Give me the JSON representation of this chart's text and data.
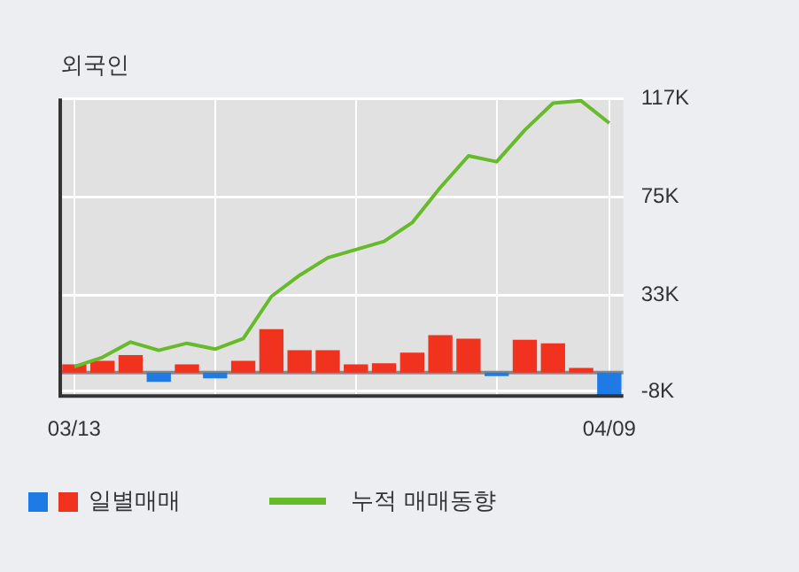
{
  "chart_data": {
    "type": "bar",
    "title": "외국인",
    "categories": [
      "03/13",
      null,
      null,
      null,
      null,
      null,
      null,
      null,
      null,
      null,
      null,
      null,
      null,
      null,
      null,
      null,
      null,
      null,
      null,
      "04/09"
    ],
    "series": [
      {
        "name": "일별매매",
        "colors": [
          "#f0321e",
          "#f0321e",
          "#f0321e",
          "#1e7be6",
          "#f0321e",
          "#1e7be6",
          "#f0321e",
          "#f0321e",
          "#f0321e",
          "#f0321e",
          "#f0321e",
          "#f0321e",
          "#f0321e",
          "#f0321e",
          "#f0321e",
          "#1e7be6",
          "#f0321e",
          "#f0321e",
          "#f0321e",
          "#1e7be6"
        ],
        "values": [
          3500,
          5000,
          7500,
          -4000,
          3500,
          -2500,
          5000,
          18500,
          9500,
          9500,
          3500,
          4000,
          8500,
          16000,
          14500,
          -1500,
          14000,
          12500,
          2000,
          -9500
        ]
      },
      {
        "name": "누적 매매동향",
        "type": "line",
        "color": "#66bb2a",
        "values": [
          2500,
          6500,
          13000,
          9500,
          12500,
          10000,
          14500,
          32500,
          41500,
          49000,
          52500,
          56000,
          64000,
          79000,
          92500,
          90000,
          103500,
          115000,
          116000,
          106500
        ]
      }
    ],
    "ylim": [
      -10000,
      117000
    ],
    "yticks": [
      {
        "value": -8000,
        "label": "-8K"
      },
      {
        "value": 33000,
        "label": "33K"
      },
      {
        "value": 75000,
        "label": "75K"
      },
      {
        "value": 117000,
        "label": "117K"
      }
    ],
    "grid": true,
    "legend": "bottom",
    "marker": "none"
  }
}
